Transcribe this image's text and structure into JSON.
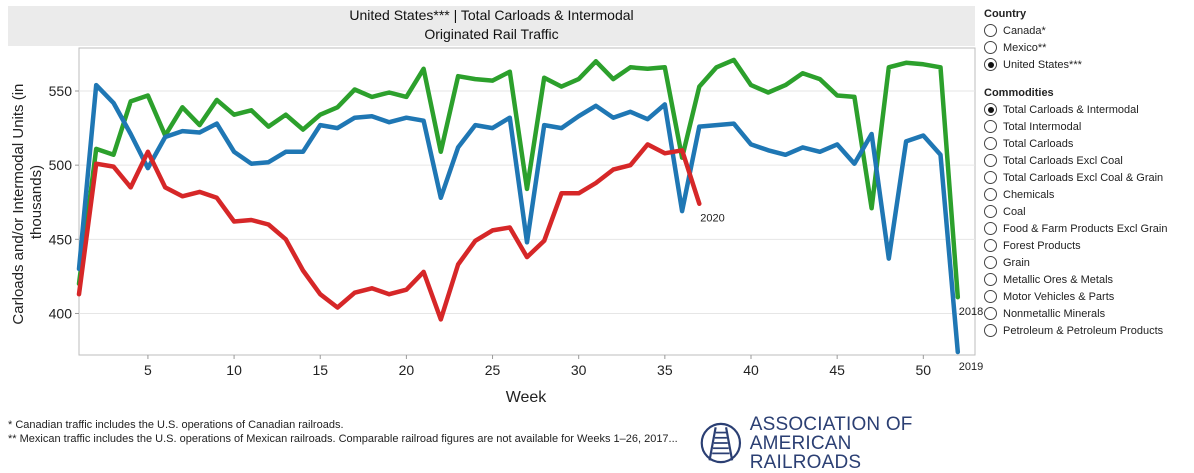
{
  "title": {
    "line1": "United States*** | Total Carloads & Intermodal",
    "line2": "Originated Rail Traffic"
  },
  "sidebar": {
    "country_header": "Country",
    "country_options": [
      {
        "label": "Canada*",
        "selected": false
      },
      {
        "label": "Mexico**",
        "selected": false
      },
      {
        "label": "United States***",
        "selected": true
      }
    ],
    "commodities_header": "Commodities",
    "commodity_options": [
      {
        "label": "Total Carloads & Intermodal",
        "selected": true
      },
      {
        "label": "Total Intermodal",
        "selected": false
      },
      {
        "label": "Total Carloads",
        "selected": false
      },
      {
        "label": "Total Carloads Excl Coal",
        "selected": false
      },
      {
        "label": "Total Carloads Excl Coal & Grain",
        "selected": false
      },
      {
        "label": "Chemicals",
        "selected": false
      },
      {
        "label": "Coal",
        "selected": false
      },
      {
        "label": "Food & Farm Products Excl Grain",
        "selected": false
      },
      {
        "label": "Forest Products",
        "selected": false
      },
      {
        "label": "Grain",
        "selected": false
      },
      {
        "label": "Metallic Ores & Metals",
        "selected": false
      },
      {
        "label": "Motor Vehicles & Parts",
        "selected": false
      },
      {
        "label": "Nonmetallic Minerals",
        "selected": false
      },
      {
        "label": "Petroleum & Petroleum Products",
        "selected": false
      }
    ]
  },
  "footnotes": {
    "line1": "* Canadian traffic includes the U.S. operations of Canadian railroads.",
    "line2": "** Mexican traffic includes the U.S. operations of Mexican railroads. Comparable railroad figures are not available for Weeks 1–26, 2017..."
  },
  "logo": {
    "line1": "ASSOCIATION OF",
    "line2": "AMERICAN RAILROADS",
    "color": "#2b3f73"
  },
  "chart_data": {
    "type": "line",
    "xlabel": "Week",
    "ylabel": "Carloads and/or Intermodal Units (in thousands)",
    "xlim": [
      1,
      53
    ],
    "ylim": [
      372,
      579
    ],
    "x_ticks": [
      5,
      10,
      15,
      20,
      25,
      30,
      35,
      40,
      45,
      50
    ],
    "y_ticks": [
      400,
      450,
      500,
      550
    ],
    "series": [
      {
        "name": "2018",
        "color": "#2ca02c",
        "x": [
          1,
          2,
          3,
          4,
          5,
          6,
          7,
          8,
          9,
          10,
          11,
          12,
          13,
          14,
          15,
          16,
          17,
          18,
          19,
          20,
          21,
          22,
          23,
          24,
          25,
          26,
          27,
          28,
          29,
          30,
          31,
          32,
          33,
          34,
          35,
          36,
          37,
          38,
          39,
          40,
          41,
          42,
          43,
          44,
          45,
          46,
          47,
          48,
          49,
          50,
          51,
          52
        ],
        "values": [
          420,
          511,
          507,
          543,
          547,
          520,
          539,
          527,
          544,
          534,
          537,
          526,
          534,
          524,
          534,
          539,
          551,
          546,
          549,
          546,
          565,
          509,
          560,
          558,
          557,
          563,
          484,
          559,
          553,
          558,
          570,
          558,
          566,
          565,
          566,
          505,
          553,
          566,
          571,
          554,
          549,
          554,
          562,
          558,
          547,
          546,
          471,
          566,
          569,
          568,
          566,
          411
        ]
      },
      {
        "name": "2019",
        "color": "#1f77b4",
        "x": [
          1,
          2,
          3,
          4,
          5,
          6,
          7,
          8,
          9,
          10,
          11,
          12,
          13,
          14,
          15,
          16,
          17,
          18,
          19,
          20,
          21,
          22,
          23,
          24,
          25,
          26,
          27,
          28,
          29,
          30,
          31,
          32,
          33,
          34,
          35,
          36,
          37,
          38,
          39,
          40,
          41,
          42,
          43,
          44,
          45,
          46,
          47,
          48,
          49,
          50,
          51,
          52
        ],
        "values": [
          430,
          554,
          542,
          521,
          498,
          519,
          523,
          522,
          528,
          509,
          501,
          502,
          509,
          509,
          527,
          525,
          532,
          533,
          529,
          532,
          530,
          478,
          512,
          527,
          525,
          532,
          448,
          527,
          525,
          533,
          540,
          532,
          536,
          531,
          541,
          469,
          526,
          527,
          528,
          514,
          510,
          507,
          512,
          509,
          514,
          501,
          521,
          437,
          516,
          520,
          507,
          374
        ]
      },
      {
        "name": "2020",
        "color": "#d62728",
        "x": [
          1,
          2,
          3,
          4,
          5,
          6,
          7,
          8,
          9,
          10,
          11,
          12,
          13,
          14,
          15,
          16,
          17,
          18,
          19,
          20,
          21,
          22,
          23,
          24,
          25,
          26,
          27,
          28,
          29,
          30,
          31,
          32,
          33,
          34,
          35,
          36,
          37
        ],
        "values": [
          413,
          501,
          499,
          485,
          509,
          485,
          479,
          482,
          478,
          462,
          463,
          460,
          450,
          429,
          413,
          404,
          414,
          417,
          413,
          416,
          428,
          396,
          433,
          449,
          456,
          458,
          438,
          449,
          481,
          481,
          488,
          497,
          500,
          514,
          508,
          510,
          474
        ]
      }
    ]
  }
}
